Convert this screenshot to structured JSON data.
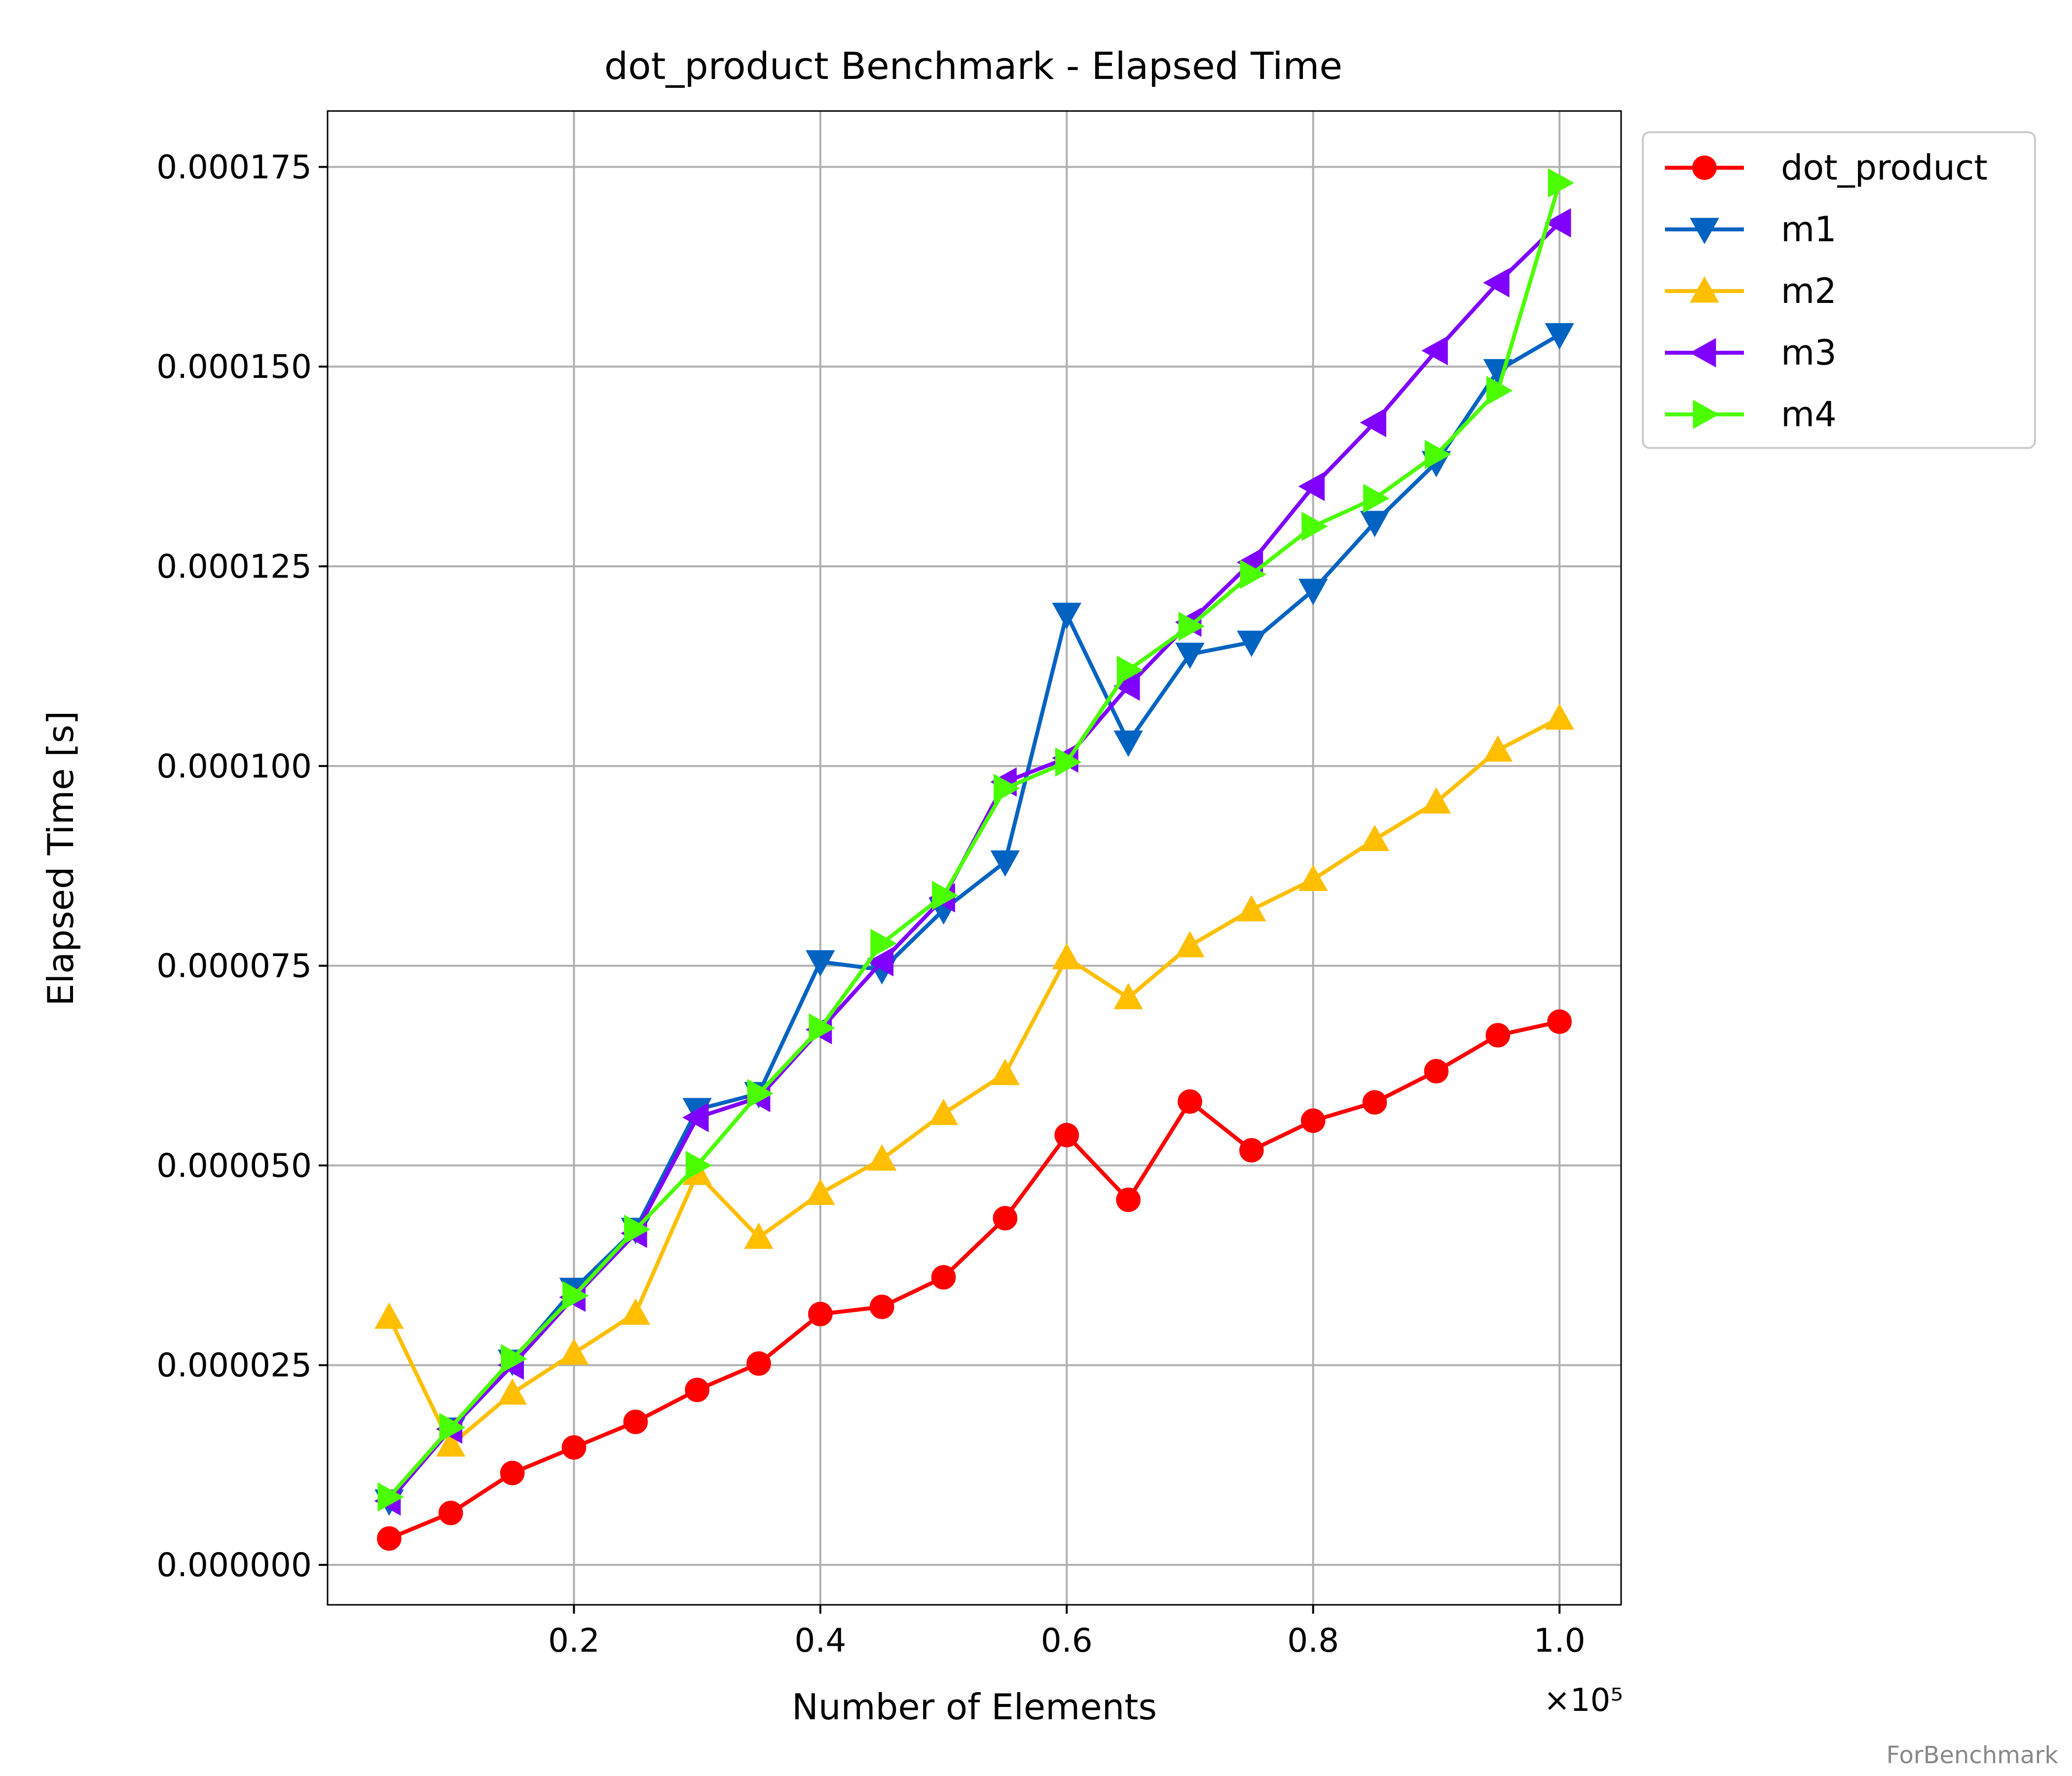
{
  "chart_data": {
    "type": "line",
    "title": "dot_product Benchmark - Elapsed Time",
    "xlabel": "Number of Elements",
    "ylabel": "Elapsed Time [s]",
    "x_multiplier": "×10⁵",
    "x": [
      0.05,
      0.1,
      0.15,
      0.2,
      0.25,
      0.3,
      0.35,
      0.4,
      0.45,
      0.5,
      0.55,
      0.6,
      0.65,
      0.7,
      0.75,
      0.8,
      0.85,
      0.9,
      0.95,
      1.0
    ],
    "xlim": [
      0.0,
      1.05
    ],
    "ylim": [
      -5e-06,
      0.000182
    ],
    "xticks": [
      0.2,
      0.4,
      0.6,
      0.8,
      1.0
    ],
    "xtick_labels": [
      "0.2",
      "0.4",
      "0.6",
      "0.8",
      "1.0"
    ],
    "yticks": [
      0.0,
      2.5e-05,
      5e-05,
      7.5e-05,
      0.0001,
      0.000125,
      0.00015,
      0.000175
    ],
    "ytick_labels": [
      "0.000000",
      "0.000025",
      "0.000050",
      "0.000075",
      "0.000100",
      "0.000125",
      "0.000150",
      "0.000175"
    ],
    "grid": true,
    "legend_position": "outside-top-right",
    "series": [
      {
        "name": "dot_product",
        "color": "#ff0000",
        "marker": "circle",
        "values": [
          3.3e-06,
          6.5e-06,
          1.15e-05,
          1.47e-05,
          1.79e-05,
          2.19e-05,
          2.52e-05,
          3.14e-05,
          3.23e-05,
          3.6e-05,
          4.34e-05,
          5.38e-05,
          4.57e-05,
          5.8e-05,
          5.19e-05,
          5.56e-05,
          5.79e-05,
          6.18e-05,
          6.63e-05,
          6.8e-05
        ]
      },
      {
        "name": "m1",
        "color": "#0063c1",
        "marker": "triangle-down",
        "values": [
          8e-06,
          1.7e-05,
          2.55e-05,
          3.45e-05,
          4.2e-05,
          5.7e-05,
          5.9e-05,
          7.55e-05,
          7.45e-05,
          8.2e-05,
          8.8e-05,
          0.000119,
          0.000103,
          0.000114,
          0.0001155,
          0.000122,
          0.0001305,
          0.000138,
          0.0001495,
          0.000154
        ]
      },
      {
        "name": "m2",
        "color": "#ffbf00",
        "marker": "triangle-up",
        "values": [
          3.1e-05,
          1.5e-05,
          2.15e-05,
          2.65e-05,
          3.15e-05,
          4.9e-05,
          4.1e-05,
          4.65e-05,
          5.08e-05,
          5.65e-05,
          6.15e-05,
          7.6e-05,
          7.1e-05,
          7.75e-05,
          8.2e-05,
          8.58e-05,
          9.08e-05,
          9.55e-05,
          0.000102,
          0.000106
        ]
      },
      {
        "name": "m3",
        "color": "#7f00ff",
        "marker": "triangle-left",
        "values": [
          8e-06,
          1.7e-05,
          2.5e-05,
          3.35e-05,
          4.15e-05,
          5.6e-05,
          5.85e-05,
          6.7e-05,
          7.55e-05,
          8.35e-05,
          9.8e-05,
          0.000101,
          0.00011,
          0.000118,
          0.0001255,
          0.000135,
          0.000143,
          0.000152,
          0.0001605,
          0.000168
        ]
      },
      {
        "name": "m4",
        "color": "#4cff00",
        "marker": "triangle-right",
        "values": [
          8.5e-06,
          1.72e-05,
          2.58e-05,
          3.37e-05,
          4.2e-05,
          5e-05,
          5.9e-05,
          6.72e-05,
          7.78e-05,
          8.38e-05,
          9.72e-05,
          0.0001005,
          0.000112,
          0.0001175,
          0.000124,
          0.00013,
          0.0001335,
          0.000139,
          0.000147,
          0.000173
        ]
      }
    ]
  },
  "watermark": "ForBenchmark"
}
